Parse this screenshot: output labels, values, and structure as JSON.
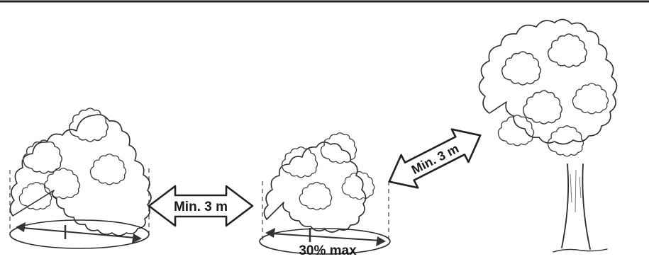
{
  "labels": {
    "gap_shrub_to_shrub": "Min. 3 m",
    "gap_shrub_to_tree": "Min. 3 m",
    "crown_cover": "30% max"
  }
}
